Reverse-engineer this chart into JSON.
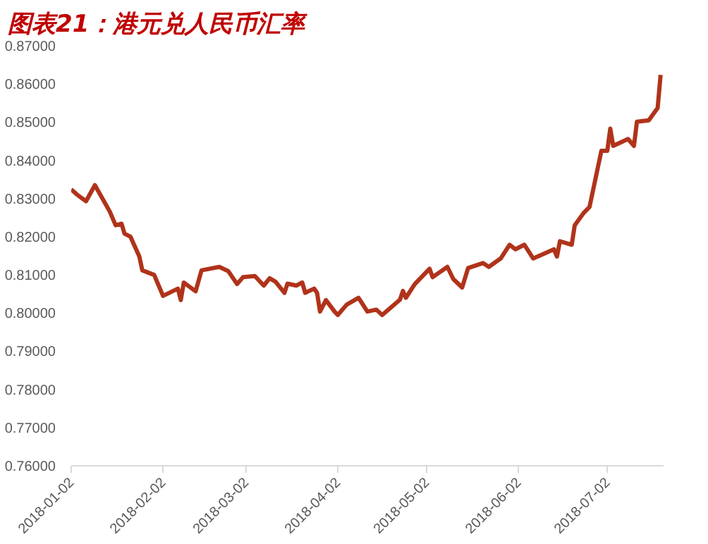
{
  "chart_data": {
    "type": "line",
    "title": "图表21：港元兑人民币汇率",
    "x": [
      "2018-01-02",
      "2018-01-04",
      "2018-01-07",
      "2018-01-10",
      "2018-01-15",
      "2018-01-17",
      "2018-01-19",
      "2018-01-20",
      "2018-01-22",
      "2018-01-25",
      "2018-01-26",
      "2018-01-30",
      "2018-02-02",
      "2018-02-07",
      "2018-02-08",
      "2018-02-09",
      "2018-02-13",
      "2018-02-15",
      "2018-02-21",
      "2018-02-24",
      "2018-02-27",
      "2018-03-01",
      "2018-03-05",
      "2018-03-08",
      "2018-03-10",
      "2018-03-12",
      "2018-03-15",
      "2018-03-16",
      "2018-03-19",
      "2018-03-21",
      "2018-03-22",
      "2018-03-25",
      "2018-03-26",
      "2018-03-27",
      "2018-03-29",
      "2018-04-01",
      "2018-04-02",
      "2018-04-05",
      "2018-04-09",
      "2018-04-12",
      "2018-04-15",
      "2018-04-17",
      "2018-04-23",
      "2018-04-24",
      "2018-04-25",
      "2018-04-28",
      "2018-05-03",
      "2018-05-04",
      "2018-05-09",
      "2018-05-11",
      "2018-05-14",
      "2018-05-16",
      "2018-05-21",
      "2018-05-23",
      "2018-05-27",
      "2018-05-30",
      "2018-06-01",
      "2018-06-04",
      "2018-06-07",
      "2018-06-14",
      "2018-06-15",
      "2018-06-16",
      "2018-06-20",
      "2018-06-21",
      "2018-06-24",
      "2018-06-26",
      "2018-06-30",
      "2018-07-02",
      "2018-07-03",
      "2018-07-04",
      "2018-07-09",
      "2018-07-11",
      "2018-07-12",
      "2018-07-16",
      "2018-07-19",
      "2018-07-20"
    ],
    "series": [
      {
        "color": "#b0331a",
        "values": [
          0.8324,
          0.831,
          0.8293,
          0.8335,
          0.8266,
          0.823,
          0.8234,
          0.8208,
          0.82,
          0.8148,
          0.8112,
          0.81,
          0.8045,
          0.8064,
          0.8034,
          0.808,
          0.8057,
          0.8112,
          0.8121,
          0.811,
          0.8076,
          0.8094,
          0.8097,
          0.8072,
          0.8091,
          0.8082,
          0.8053,
          0.8077,
          0.8072,
          0.808,
          0.8053,
          0.8064,
          0.8053,
          0.8004,
          0.8034,
          0.8003,
          0.7995,
          0.8022,
          0.804,
          0.8004,
          0.8009,
          0.7995,
          0.8035,
          0.8058,
          0.804,
          0.8076,
          0.8116,
          0.8094,
          0.8121,
          0.8089,
          0.8067,
          0.8118,
          0.8131,
          0.8121,
          0.8143,
          0.8179,
          0.8167,
          0.8179,
          0.8143,
          0.8167,
          0.8148,
          0.8188,
          0.8179,
          0.823,
          0.8262,
          0.8278,
          0.8425,
          0.8425,
          0.8483,
          0.8438,
          0.8456,
          0.8438,
          0.8501,
          0.8505,
          0.8537,
          0.8624
        ]
      }
    ],
    "xlim": [
      "2018-01-02",
      "2018-07-21"
    ],
    "xticks": [
      "2018-01-02",
      "2018-02-02",
      "2018-03-02",
      "2018-04-02",
      "2018-05-02",
      "2018-06-02",
      "2018-07-02"
    ],
    "ylim": [
      0.76,
      0.87
    ],
    "yticks": [
      {
        "value": 0.76,
        "label": "0.76000"
      },
      {
        "value": 0.77,
        "label": "0.77000"
      },
      {
        "value": 0.78,
        "label": "0.78000"
      },
      {
        "value": 0.79,
        "label": "0.79000"
      },
      {
        "value": 0.8,
        "label": "0.80000"
      },
      {
        "value": 0.81,
        "label": "0.81000"
      },
      {
        "value": 0.82,
        "label": "0.82000"
      },
      {
        "value": 0.83,
        "label": "0.83000"
      },
      {
        "value": 0.84,
        "label": "0.84000"
      },
      {
        "value": 0.85,
        "label": "0.85000"
      },
      {
        "value": 0.86,
        "label": "0.86000"
      },
      {
        "value": 0.87,
        "label": "0.87000"
      }
    ],
    "grid": false
  }
}
